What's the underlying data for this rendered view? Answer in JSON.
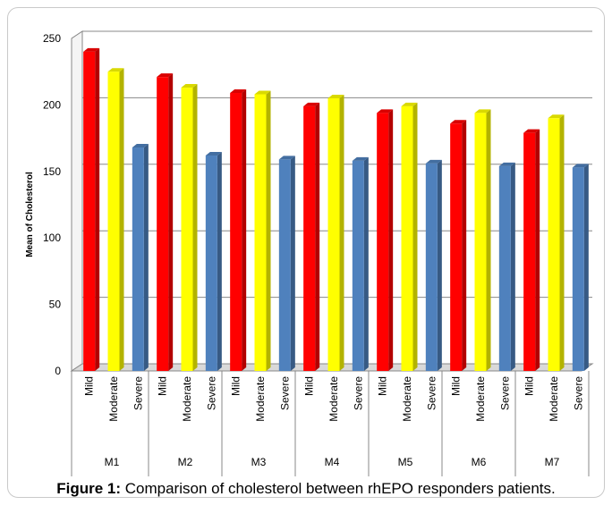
{
  "chart_data": {
    "type": "bar",
    "ylabel": "Mean of Cholesterol",
    "ylim": [
      0,
      250
    ],
    "yticks": [
      0,
      50,
      100,
      150,
      200,
      250
    ],
    "grid": true,
    "groups": [
      "M1",
      "M2",
      "M3",
      "M4",
      "M5",
      "M6",
      "M7"
    ],
    "series": [
      {
        "name": "Mild",
        "color": "#ff0000",
        "values": [
          240,
          221,
          209,
          199,
          194,
          186,
          179
        ]
      },
      {
        "name": "Moderate",
        "color": "#ffff00",
        "values": [
          225,
          213,
          208,
          205,
          199,
          194,
          190
        ]
      },
      {
        "name": "Severe",
        "color": "#4f81bd",
        "values": [
          168,
          162,
          159,
          158,
          156,
          154,
          153
        ]
      }
    ]
  },
  "caption": {
    "label": "Figure 1:",
    "text": " Comparison of cholesterol between rhEPO responders patients."
  }
}
